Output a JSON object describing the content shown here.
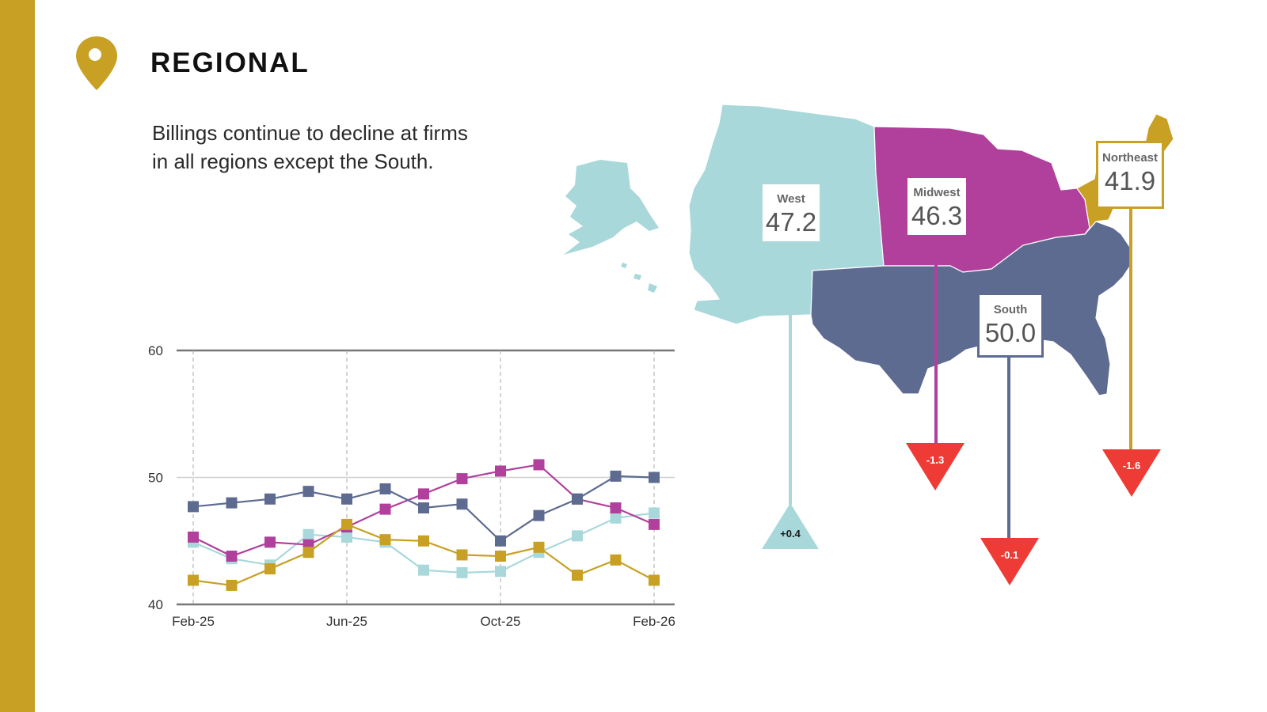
{
  "header": {
    "title": "REGIONAL",
    "subtitle_line1": "Billings continue to decline at firms",
    "subtitle_line2": "in all regions except the South."
  },
  "colors": {
    "accent": "#c8a024",
    "west": "#a9d8db",
    "midwest": "#b0409c",
    "south": "#5e6b91",
    "northeast": "#c8a024",
    "decline": "#ee3b36"
  },
  "chart_data": {
    "type": "line",
    "title": "",
    "xlabel": "",
    "ylabel": "",
    "ylim": [
      40,
      60
    ],
    "yticks": [
      "40",
      "50",
      "60"
    ],
    "x": [
      "Feb-25",
      "Mar-25",
      "Apr-25",
      "May-25",
      "Jun-25",
      "Jul-25",
      "Aug-25",
      "Sep-25",
      "Oct-25",
      "Nov-25",
      "Dec-25",
      "Jan-26",
      "Feb-26"
    ],
    "xtick_labels": [
      "Feb-25",
      "Jun-25",
      "Oct-25",
      "Feb-26"
    ],
    "series": [
      {
        "name": "West",
        "color": "#a9d8db",
        "values": [
          44.9,
          43.6,
          43.1,
          45.5,
          45.3,
          44.9,
          42.7,
          42.5,
          42.6,
          44.1,
          45.4,
          46.8,
          47.2
        ]
      },
      {
        "name": "Midwest",
        "color": "#b0409c",
        "values": [
          45.3,
          43.8,
          44.9,
          44.7,
          46.1,
          47.5,
          48.7,
          49.9,
          50.5,
          51.0,
          48.3,
          47.6,
          46.3
        ]
      },
      {
        "name": "South",
        "color": "#5e6b91",
        "values": [
          47.7,
          48.0,
          48.3,
          48.9,
          48.3,
          49.1,
          47.6,
          47.9,
          45.0,
          47.0,
          48.3,
          50.1,
          50.0
        ]
      },
      {
        "name": "Northeast",
        "color": "#c8a024",
        "values": [
          41.9,
          41.5,
          42.8,
          44.1,
          46.3,
          45.1,
          45.0,
          43.9,
          43.8,
          44.5,
          42.3,
          43.5,
          41.9
        ]
      }
    ]
  },
  "regions": [
    {
      "name": "West",
      "value": "47.2",
      "change": "+0.4"
    },
    {
      "name": "Midwest",
      "value": "46.3",
      "change": "-1.3"
    },
    {
      "name": "South",
      "value": "50.0",
      "change": "-0.1"
    },
    {
      "name": "Northeast",
      "value": "41.9",
      "change": "-1.6"
    }
  ]
}
